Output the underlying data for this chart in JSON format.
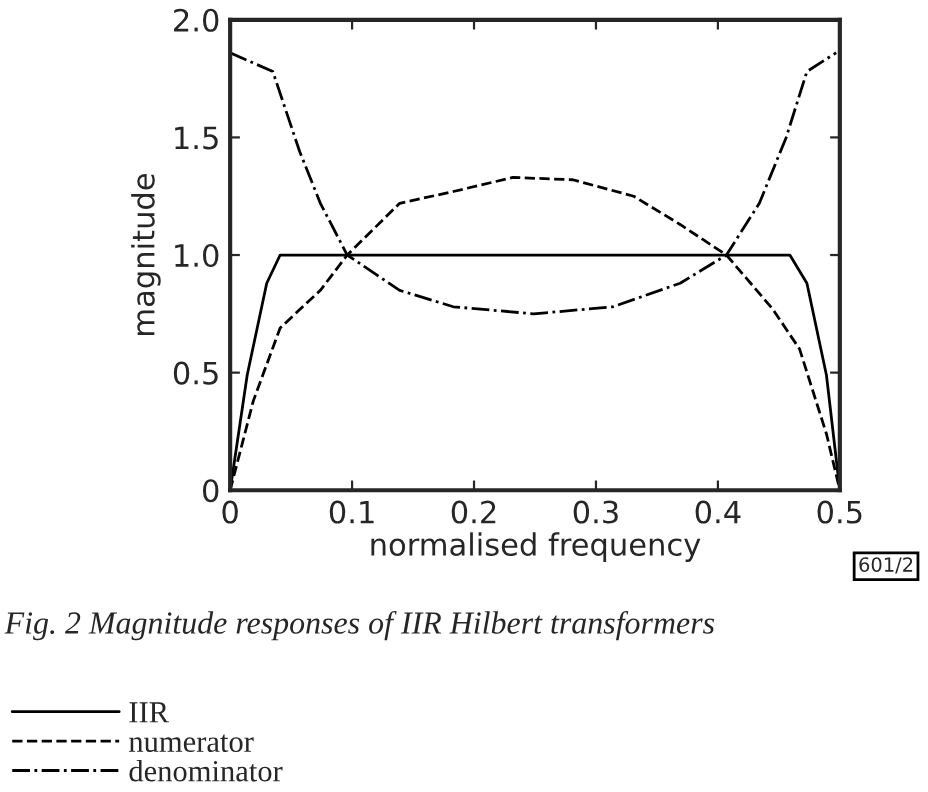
{
  "chart_data": {
    "type": "line",
    "xlabel": "normalised frequency",
    "ylabel": "magnitude",
    "xlim": [
      0,
      0.5
    ],
    "ylim": [
      0,
      2.0
    ],
    "xticks": [
      0,
      0.1,
      0.2,
      0.3,
      0.4,
      0.5
    ],
    "yticks": [
      0,
      0.5,
      {
        "value": 1.0,
        "label": "1.0"
      },
      1.5,
      {
        "value": 2.0,
        "label": "2.0"
      }
    ],
    "grid": false,
    "legend": "bottom left",
    "marker": "none",
    "annotations": [
      "601/2",
      "Fig. 2 Magnitude responses of IIR Hilbert transformers"
    ],
    "series": [
      {
        "name": "IIR",
        "color": "#000000",
        "line_style": "solid",
        "x": [
          0,
          0.014,
          0.03,
          0.041,
          0.1,
          0.2,
          0.3,
          0.4,
          0.45,
          0.459,
          0.473,
          0.489,
          0.5
        ],
        "values": [
          0,
          0.49,
          0.88,
          1.0,
          1.0,
          1.0,
          1.0,
          1.0,
          1.0,
          1.0,
          0.88,
          0.49,
          0
        ]
      },
      {
        "name": "numerator",
        "color": "#000000",
        "line_style": "dashed",
        "x": [
          0,
          0.019,
          0.041,
          0.074,
          0.096,
          0.139,
          0.183,
          0.232,
          0.281,
          0.331,
          0.369,
          0.407,
          0.445,
          0.467,
          0.489,
          0.5
        ],
        "values": [
          0,
          0.38,
          0.69,
          0.85,
          1.0,
          1.22,
          1.27,
          1.33,
          1.32,
          1.25,
          1.13,
          1.0,
          0.77,
          0.6,
          0.24,
          0
        ]
      },
      {
        "name": "denominator",
        "color": "#000000",
        "line_style": "dashdot",
        "x": [
          0,
          0.035,
          0.057,
          0.074,
          0.096,
          0.139,
          0.183,
          0.249,
          0.314,
          0.369,
          0.407,
          0.434,
          0.456,
          0.473,
          0.497
        ],
        "values": [
          1.86,
          1.78,
          1.44,
          1.22,
          1.0,
          0.85,
          0.78,
          0.75,
          0.78,
          0.88,
          1.0,
          1.22,
          1.5,
          1.78,
          1.86
        ]
      }
    ]
  }
}
